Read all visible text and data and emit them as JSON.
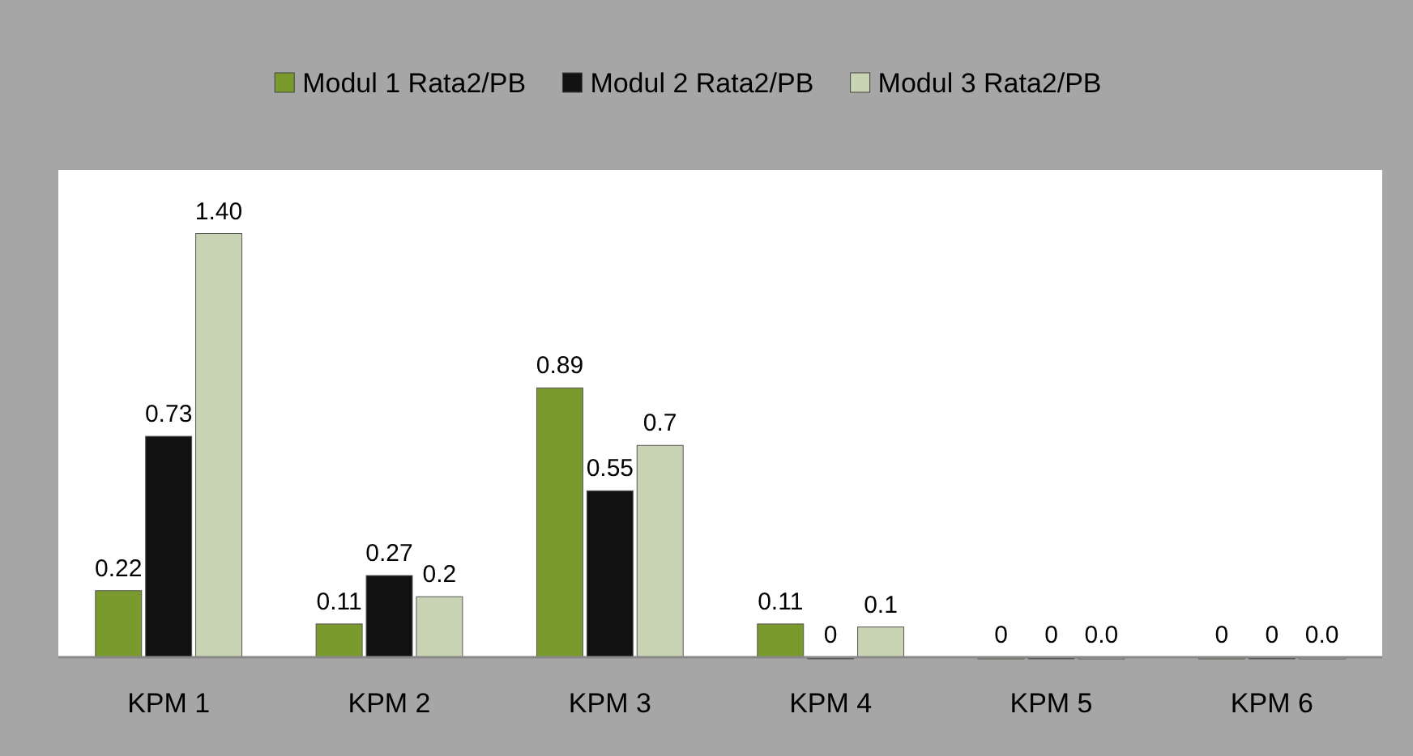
{
  "chart_data": {
    "type": "bar",
    "categories": [
      "KPM 1",
      "KPM 2",
      "KPM 3",
      "KPM 4",
      "KPM 5",
      "KPM 6"
    ],
    "series": [
      {
        "name": "Modul 1 Rata2/PB",
        "color": "#7a9a2e",
        "values": [
          0.22,
          0.11,
          0.89,
          0.11,
          0,
          0
        ],
        "value_labels": [
          "0.22",
          "0.11",
          "0.89",
          "0.11",
          "0",
          "0"
        ]
      },
      {
        "name": "Modul 2 Rata2/PB",
        "color": "#111111",
        "values": [
          0.73,
          0.27,
          0.55,
          0,
          0,
          0
        ],
        "value_labels": [
          "0.73",
          "0.27",
          "0.55",
          "0",
          "0",
          "0"
        ]
      },
      {
        "name": "Modul 3 Rata2/PB",
        "color": "#c9d4b4",
        "values": [
          1.4,
          0.2,
          0.7,
          0.1,
          0.0,
          0.0
        ],
        "value_labels": [
          "1.40",
          "0.2",
          "0.7",
          "0.1",
          "0.0",
          "0.0"
        ]
      }
    ],
    "legend": "top"
  }
}
